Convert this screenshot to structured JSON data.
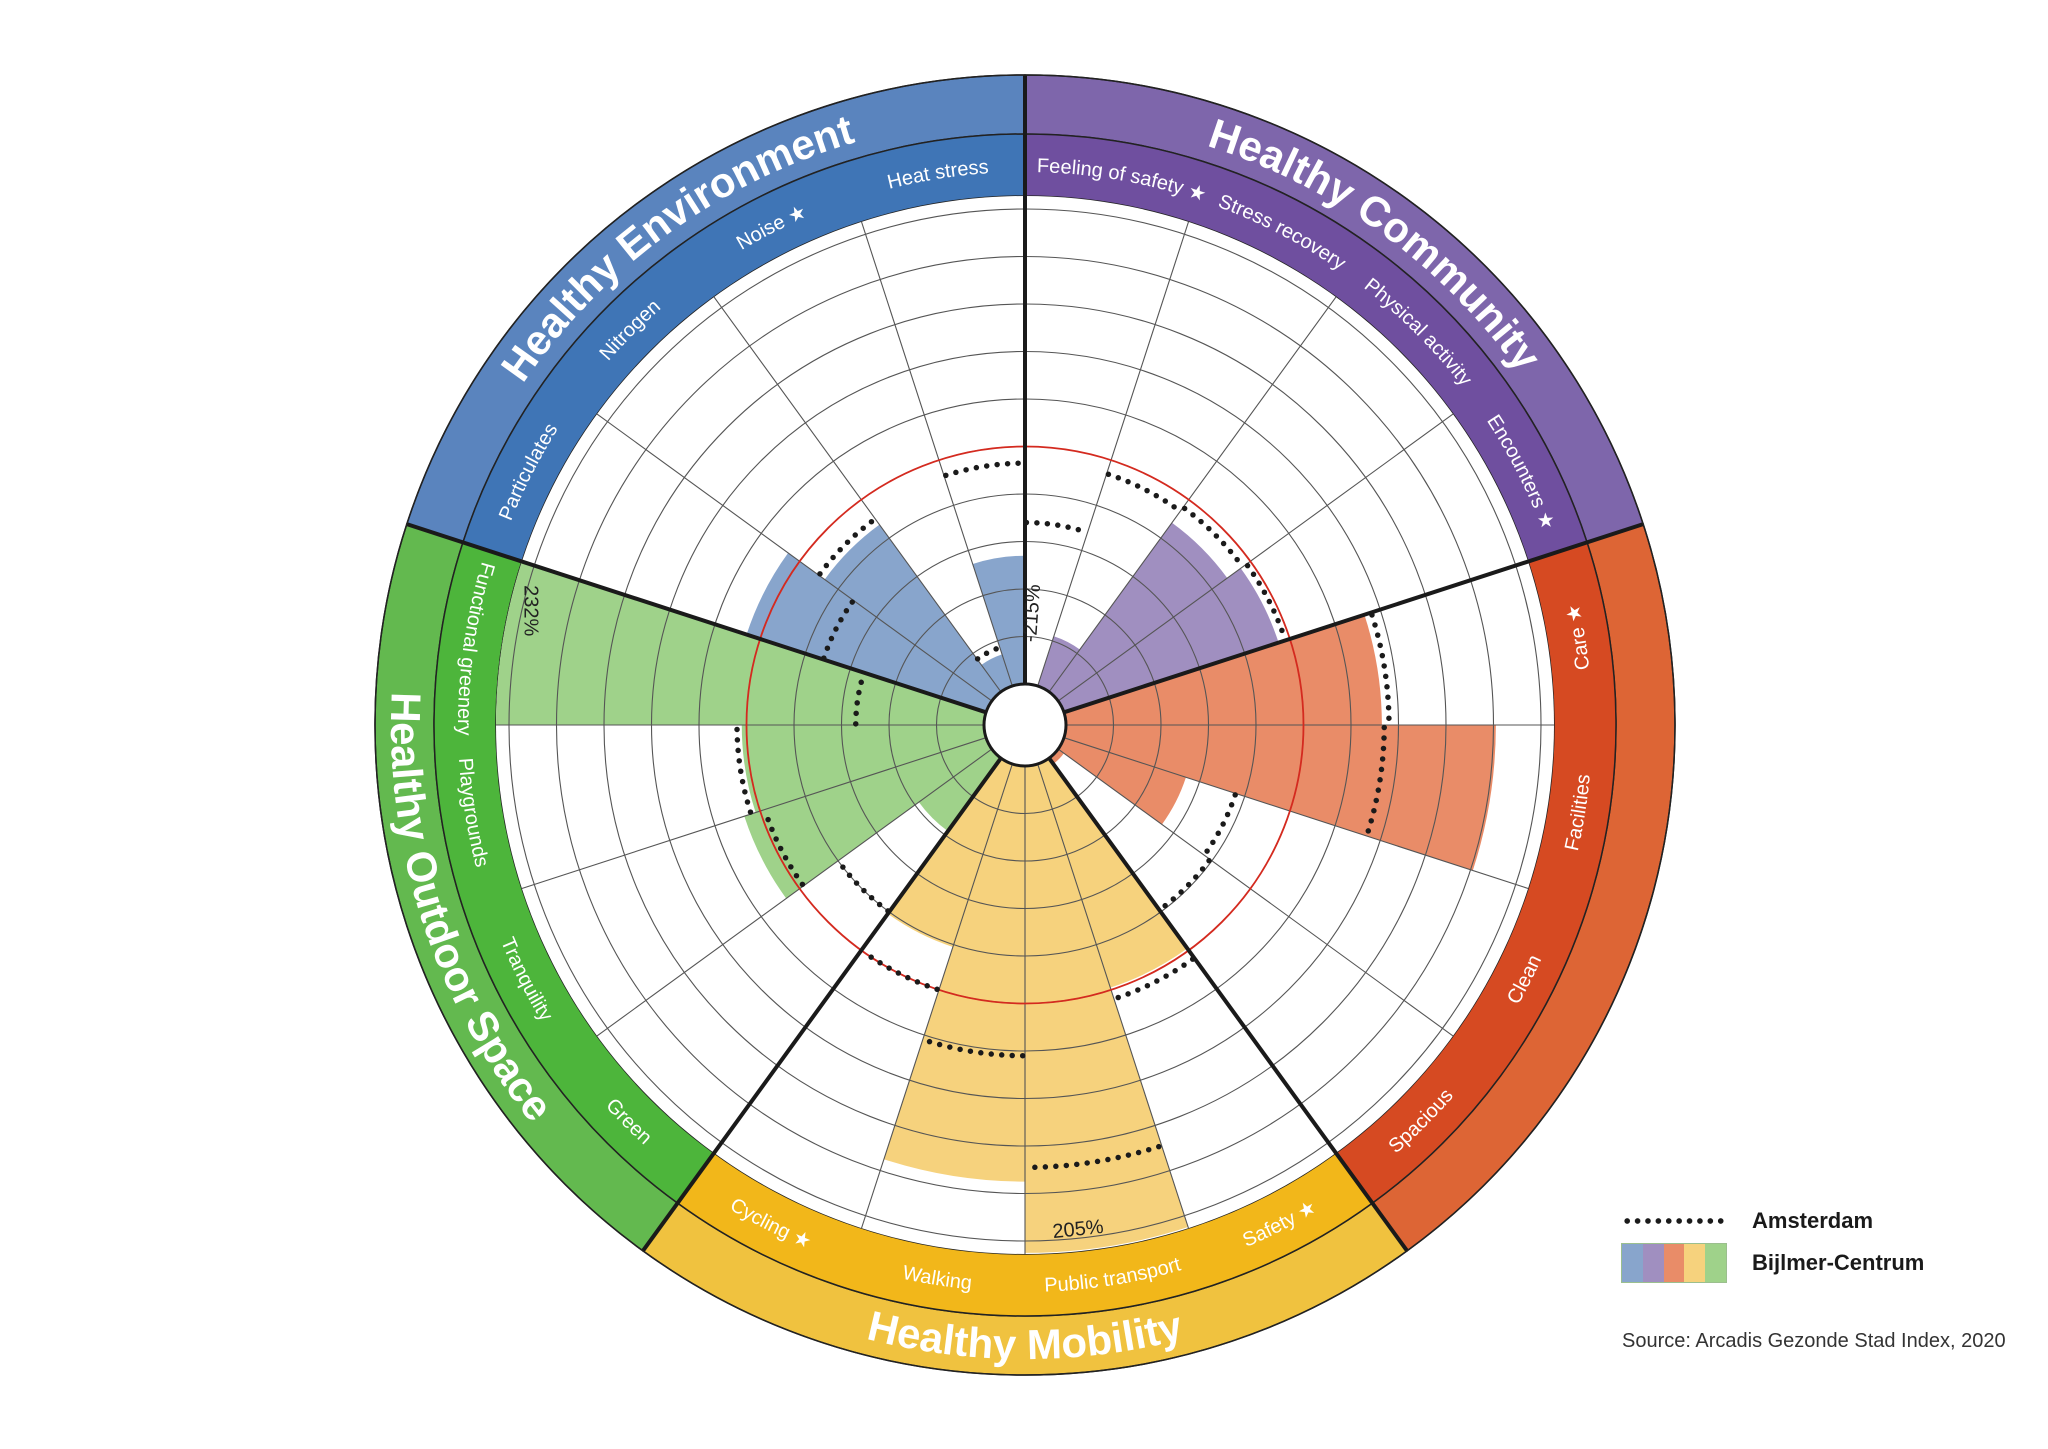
{
  "chart_data": {
    "type": "polar-bar",
    "title": "",
    "ylim": [
      0,
      200
    ],
    "grid": true,
    "ring_step": 20,
    "reference_ring": 100,
    "reference_color": "#d42a1f",
    "legend_position": "bottom-right",
    "legend": {
      "amsterdam": "Amsterdam",
      "bijlmer": "Bijlmer-Centrum"
    },
    "source": "Source: Arcadis Gezonde Stad Index, 2020",
    "domains": [
      {
        "name": "Healthy Community",
        "band_color": "#6f4f9f",
        "outer_color": "#7e66ab",
        "fill_color": "#a08fc0",
        "indicators": [
          {
            "label": "Feeling of safety",
            "star": true,
            "value": -215,
            "value_label": "-215%",
            "amsterdam": 68
          },
          {
            "label": "Stress recovery",
            "star": false,
            "value": 22,
            "amsterdam": 94
          },
          {
            "label": "Physical activity",
            "star": false,
            "value": 88,
            "amsterdam": 96
          },
          {
            "label": "Encounters",
            "star": true,
            "value": 95,
            "amsterdam": 98
          }
        ]
      },
      {
        "name": "",
        "band_color": "#d64a22",
        "outer_color": "#dd6535",
        "fill_color": "#e98c68",
        "indicators": [
          {
            "label": "Care",
            "star": true,
            "value": 133,
            "amsterdam": 136
          },
          {
            "label": "Facilities",
            "star": false,
            "value": 181,
            "amsterdam": 134
          },
          {
            "label": "Clean",
            "star": false,
            "value": 54,
            "amsterdam": 76
          },
          {
            "label": "Spacious",
            "star": false,
            "value": 3,
            "amsterdam": 79
          }
        ]
      },
      {
        "name": "Healthy Mobility",
        "band_color": "#f2b71a",
        "outer_color": "#f0c23f",
        "fill_color": "#f6d27d",
        "indicators": [
          {
            "label": "Safety",
            "star": true,
            "value": 99,
            "amsterdam": 104
          },
          {
            "label": "Public transport",
            "star": false,
            "value": 205,
            "value_label": "205%",
            "amsterdam": 169
          },
          {
            "label": "Walking",
            "star": false,
            "value": 175,
            "amsterdam": 122
          },
          {
            "label": "Cycling",
            "star": true,
            "value": 81,
            "amsterdam": 100
          }
        ]
      },
      {
        "name": "Healthy Outdoor Space",
        "band_color": "#4db53b",
        "outer_color": "#63b94f",
        "fill_color": "#9fd28a",
        "indicators": [
          {
            "label": "Green",
            "star": false,
            "value": 38,
            "amsterdam": 80
          },
          {
            "label": "Tranquility",
            "star": false,
            "value": 107,
            "amsterdam": 98
          },
          {
            "label": "Playgrounds",
            "star": false,
            "value": 102,
            "amsterdam": 104
          },
          {
            "label": "Functional greenery",
            "star": false,
            "value": 232,
            "value_label": "232%",
            "amsterdam": 54
          }
        ]
      },
      {
        "name": "Healthy Environment",
        "band_color": "#3f75b6",
        "outer_color": "#5a84be",
        "fill_color": "#88a5cc",
        "indicators": [
          {
            "label": "Particulates",
            "star": false,
            "value": 106,
            "amsterdam": 72
          },
          {
            "label": "Nitrogen",
            "star": false,
            "value": 87,
            "amsterdam": 90
          },
          {
            "label": "Noise",
            "star": true,
            "value": 14,
            "amsterdam": 17
          },
          {
            "label": "Heat stress",
            "star": false,
            "value": 54,
            "amsterdam": 93
          }
        ]
      }
    ]
  }
}
